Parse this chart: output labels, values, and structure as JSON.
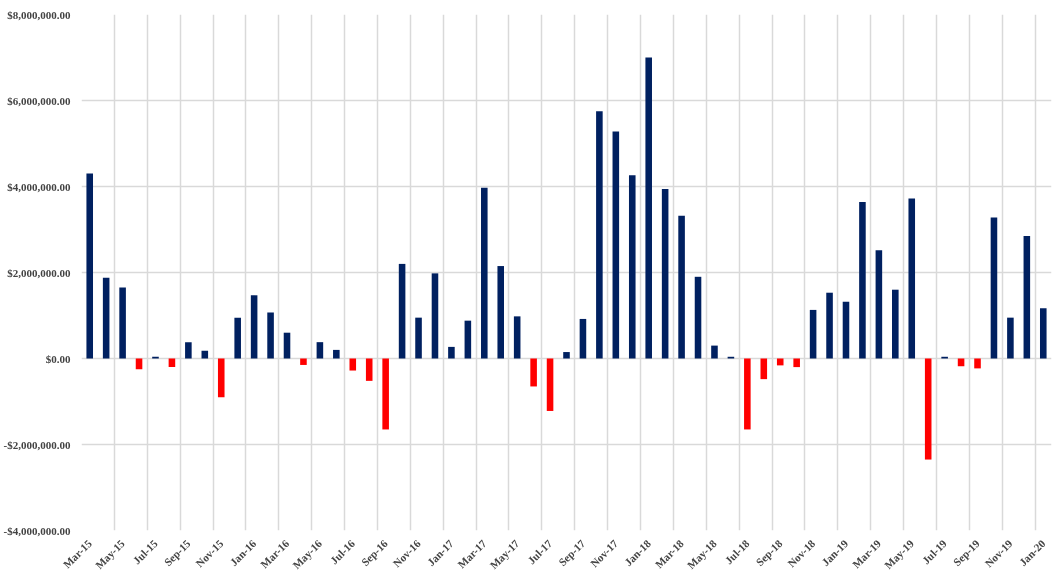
{
  "chart_data": {
    "type": "bar",
    "categories": [
      "Mar-15",
      null,
      "May-15",
      null,
      "Jul-15",
      null,
      "Sep-15",
      null,
      "Nov-15",
      null,
      "Jan-16",
      null,
      "Mar-16",
      null,
      "May-16",
      null,
      "Jul-16",
      null,
      "Sep-16",
      null,
      "Nov-16",
      null,
      "Jan-17",
      null,
      "Mar-17",
      null,
      "May-17",
      null,
      "Jul-17",
      null,
      "Sep-17",
      null,
      "Nov-17",
      null,
      "Jan-18",
      null,
      "Mar-18",
      null,
      "May-18",
      null,
      "Jul-18",
      null,
      "Sep-18",
      null,
      "Nov-18",
      null,
      "Jan-19",
      null,
      "Mar-19",
      null,
      "May-19",
      null,
      "Jul-19",
      null,
      "Sep-19",
      null,
      "Nov-19",
      null,
      "Jan-20"
    ],
    "values": [
      4300000,
      1880000,
      1650000,
      -250000,
      40000,
      -200000,
      380000,
      180000,
      -900000,
      950000,
      1470000,
      1070000,
      600000,
      -150000,
      380000,
      200000,
      -280000,
      -520000,
      -1650000,
      2200000,
      950000,
      1980000,
      270000,
      880000,
      3970000,
      2150000,
      980000,
      -650000,
      -1220000,
      150000,
      920000,
      5750000,
      5280000,
      4260000,
      7000000,
      3940000,
      3320000,
      1900000,
      300000,
      40000,
      -1650000,
      -480000,
      -160000,
      -200000,
      1130000,
      1530000,
      1320000,
      3640000,
      2520000,
      1600000,
      3720000,
      -2350000,
      40000,
      -180000,
      -230000,
      3280000,
      950000,
      2850000,
      1170000
    ],
    "colors": [
      "#002060",
      "#002060",
      "#002060",
      "#ff0000",
      "#002060",
      "#ff0000",
      "#002060",
      "#002060",
      "#ff0000",
      "#002060",
      "#002060",
      "#002060",
      "#002060",
      "#ff0000",
      "#002060",
      "#002060",
      "#ff0000",
      "#ff0000",
      "#ff0000",
      "#002060",
      "#002060",
      "#002060",
      "#002060",
      "#002060",
      "#002060",
      "#002060",
      "#002060",
      "#ff0000",
      "#ff0000",
      "#002060",
      "#002060",
      "#002060",
      "#002060",
      "#002060",
      "#002060",
      "#002060",
      "#002060",
      "#002060",
      "#002060",
      "#002060",
      "#ff0000",
      "#ff0000",
      "#ff0000",
      "#ff0000",
      "#002060",
      "#002060",
      "#002060",
      "#002060",
      "#002060",
      "#002060",
      "#002060",
      "#ff0000",
      "#002060",
      "#ff0000",
      "#ff0000",
      "#002060",
      "#002060",
      "#002060",
      "#002060"
    ],
    "ylim": [
      -4000000,
      8000000
    ],
    "yticks": [
      {
        "value": -4000000,
        "label": "-$4,000,000.00"
      },
      {
        "value": -2000000,
        "label": "-$2,000,000.00"
      },
      {
        "value": 0,
        "label": "$0.00"
      },
      {
        "value": 2000000,
        "label": "$2,000,000.00"
      },
      {
        "value": 4000000,
        "label": "$4,000,000.00"
      },
      {
        "value": 6000000,
        "label": "$6,000,000.00"
      },
      {
        "value": 8000000,
        "label": "$8,000,000.00"
      }
    ],
    "grid": true
  }
}
